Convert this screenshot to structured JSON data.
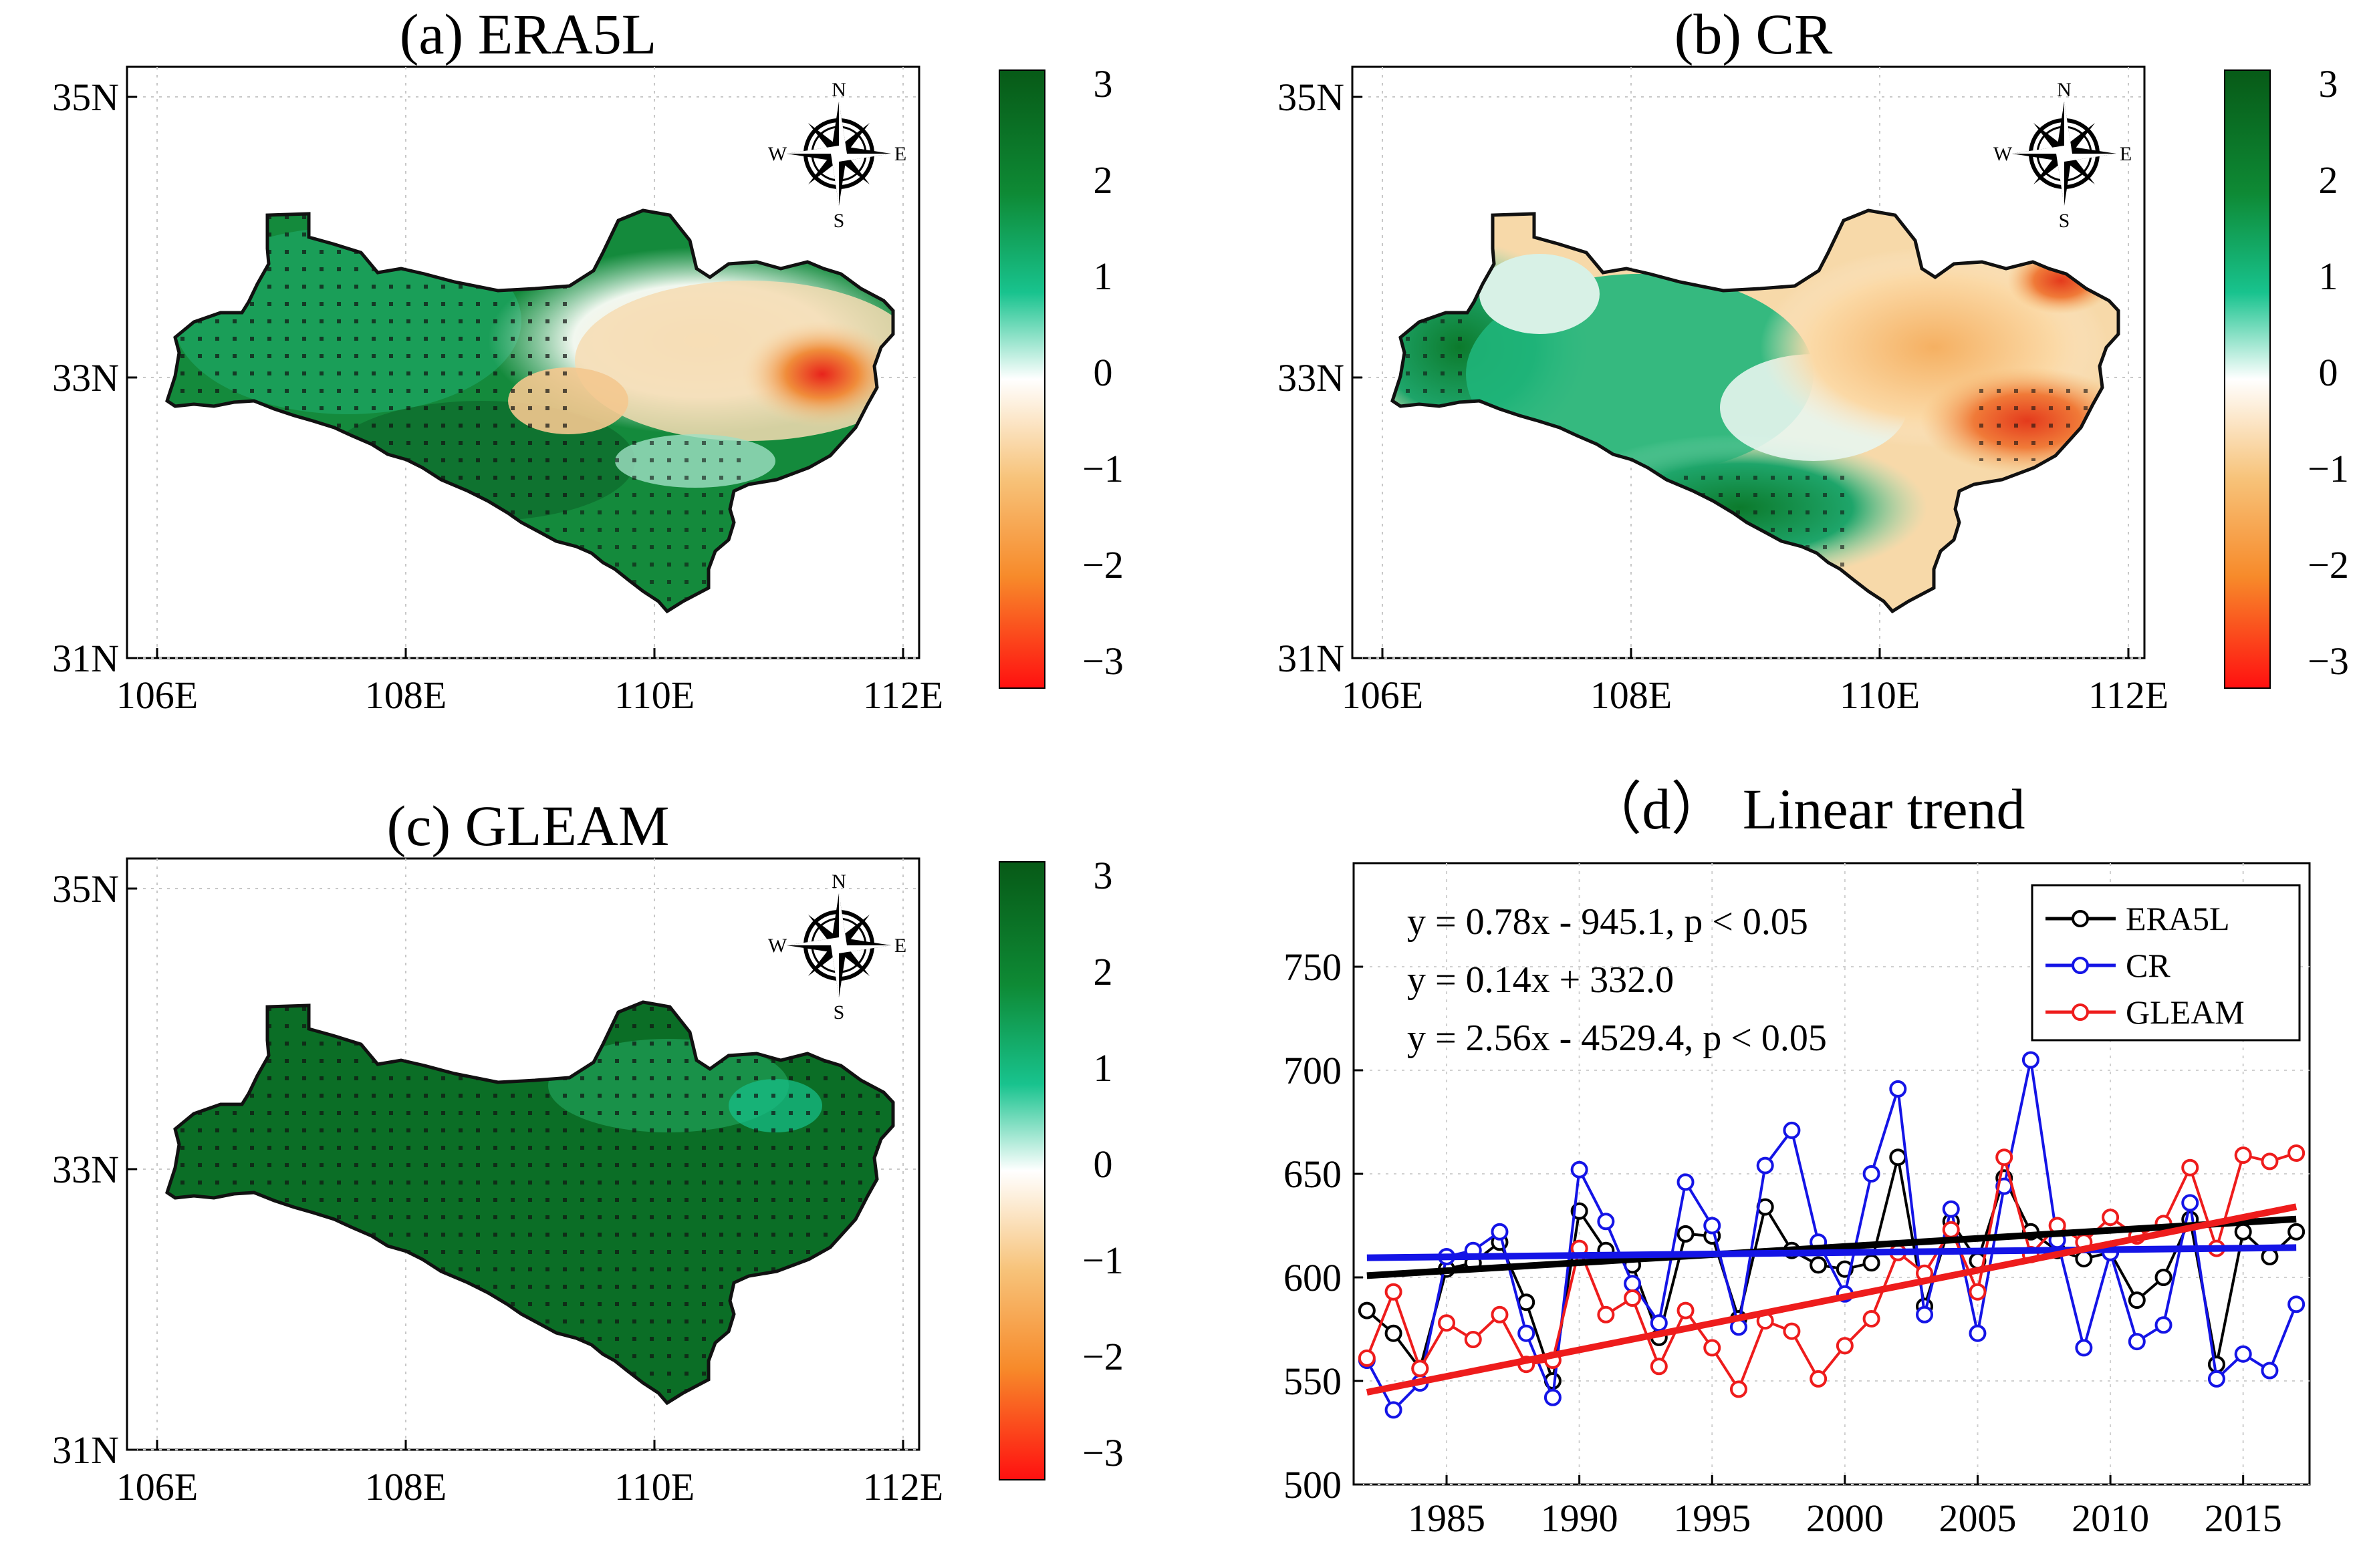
{
  "figure": {
    "panels": [
      {
        "id": "a",
        "title": "(a) ERA5L",
        "x_ticks": [
          "106E",
          "108E",
          "110E",
          "112E"
        ],
        "y_ticks": [
          "35N",
          "33N",
          "31N"
        ],
        "compass": [
          "N",
          "E",
          "S",
          "W"
        ],
        "colorbar_ticks": [
          "3",
          "2",
          "1",
          "0",
          "−1",
          "−2",
          "−3"
        ],
        "pattern": "mostly positive (green) in west and south, negative (orange/red) in northeast"
      },
      {
        "id": "b",
        "title": "(b) CR",
        "x_ticks": [
          "106E",
          "108E",
          "110E",
          "112E"
        ],
        "y_ticks": [
          "35N",
          "33N",
          "31N"
        ],
        "compass": [
          "N",
          "E",
          "S",
          "W"
        ],
        "colorbar_ticks": [
          "3",
          "2",
          "1",
          "0",
          "−1",
          "−2",
          "−3"
        ],
        "pattern": "green in west and south, orange/red across center and east"
      },
      {
        "id": "c",
        "title": "(c) GLEAM",
        "x_ticks": [
          "106E",
          "108E",
          "110E",
          "112E"
        ],
        "y_ticks": [
          "35N",
          "33N",
          "31N"
        ],
        "compass": [
          "N",
          "E",
          "S",
          "W"
        ],
        "colorbar_ticks": [
          "3",
          "2",
          "1",
          "0",
          "−1",
          "−2",
          "−3"
        ],
        "pattern": "uniformly dark green (strong positive)"
      }
    ]
  },
  "colors": {
    "era5l": "#000000",
    "cr": "#1414e6",
    "gleam": "#ee1c1c",
    "cbar_top": "#0a6e1e",
    "cbar_mid_green": "#12c08a",
    "cbar_zero": "#ffffff",
    "cbar_orange": "#f5a335",
    "cbar_bottom": "#ff1a1a"
  },
  "chart_data": {
    "type": "line",
    "title": "（d） Linear trend",
    "xlabel": "",
    "ylabel": "",
    "xlim": [
      1981.5,
      2017.5
    ],
    "ylim": [
      500,
      800
    ],
    "xticks": [
      1985,
      1990,
      1995,
      2000,
      2005,
      2010,
      2015
    ],
    "yticks": [
      500,
      550,
      600,
      650,
      700,
      750
    ],
    "categories": [
      1982,
      1983,
      1984,
      1985,
      1986,
      1987,
      1988,
      1989,
      1990,
      1991,
      1992,
      1993,
      1994,
      1995,
      1996,
      1997,
      1998,
      1999,
      2000,
      2001,
      2002,
      2003,
      2004,
      2005,
      2006,
      2007,
      2008,
      2009,
      2010,
      2011,
      2012,
      2013,
      2014,
      2015,
      2016,
      2017
    ],
    "series": [
      {
        "name": "ERA5L",
        "color": "#000000",
        "values": [
          584,
          573,
          556,
          604,
          607,
          617,
          588,
          550,
          632,
          613,
          606,
          571,
          621,
          620,
          580,
          634,
          613,
          606,
          604,
          607,
          658,
          586,
          627,
          608,
          648,
          622,
          613,
          609,
          612,
          589,
          600,
          628,
          558,
          622,
          610,
          622
        ],
        "trend": {
          "slope": 0.78,
          "intercept": -945.1
        }
      },
      {
        "name": "CR",
        "color": "#1414e6",
        "values": [
          560,
          536,
          549,
          610,
          613,
          622,
          573,
          542,
          652,
          627,
          597,
          578,
          646,
          625,
          576,
          654,
          671,
          617,
          592,
          650,
          691,
          582,
          633,
          573,
          644,
          705,
          618,
          566,
          612,
          569,
          577,
          636,
          551,
          563,
          555,
          587
        ],
        "trend": {
          "slope": 0.14,
          "intercept": 332.0
        }
      },
      {
        "name": "GLEAM",
        "color": "#ee1c1c",
        "values": [
          561,
          593,
          556,
          578,
          570,
          582,
          558,
          560,
          614,
          582,
          590,
          557,
          584,
          566,
          546,
          579,
          574,
          551,
          567,
          580,
          612,
          602,
          623,
          593,
          658,
          611,
          625,
          617,
          629,
          620,
          626,
          653,
          614,
          659,
          656,
          660
        ],
        "trend": {
          "slope": 2.56,
          "intercept": -4529.4
        }
      }
    ],
    "equations": [
      "y = 0.78x - 945.1,  p < 0.05",
      "y = 0.14x + 332.0",
      "y = 2.56x - 4529.4,  p < 0.05"
    ],
    "legend": [
      "ERA5L",
      "CR",
      "GLEAM"
    ],
    "legend_position": "top-right"
  }
}
